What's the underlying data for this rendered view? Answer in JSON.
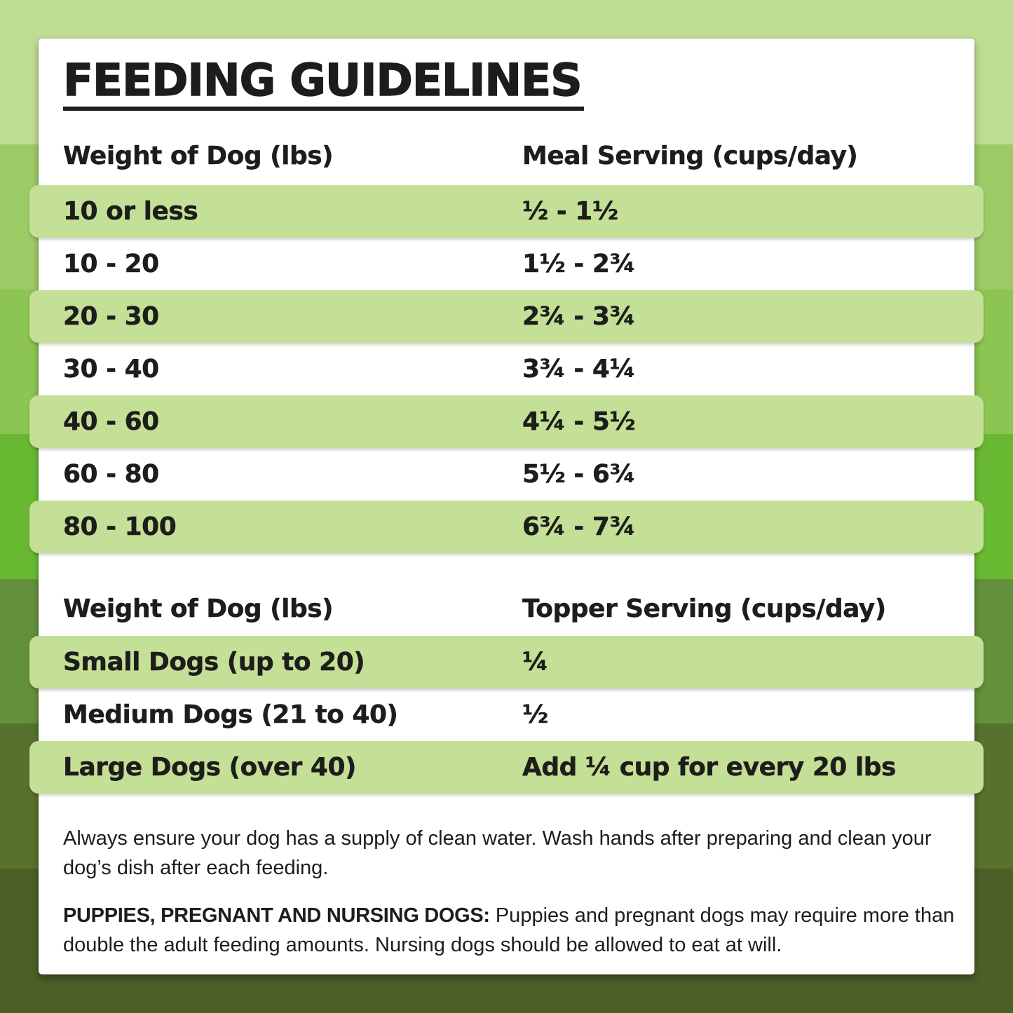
{
  "title": "FEEDING GUIDELINES",
  "meal_table": {
    "col1_header": "Weight of Dog (lbs)",
    "col2_header": "Meal Serving (cups/day)",
    "rows": [
      {
        "weight": "10 or less",
        "serving": "½ - 1½"
      },
      {
        "weight": "10 - 20",
        "serving": "1½ - 2¾"
      },
      {
        "weight": "20 - 30",
        "serving": "2¾ - 3¾"
      },
      {
        "weight": "30 - 40",
        "serving": "3¾ - 4¼"
      },
      {
        "weight": "40 - 60",
        "serving": "4¼ - 5½"
      },
      {
        "weight": "60 - 80",
        "serving": "5½ - 6¾"
      },
      {
        "weight": "80 - 100",
        "serving": "6¾ - 7¾"
      }
    ]
  },
  "topper_table": {
    "col1_header": "Weight of Dog (lbs)",
    "col2_header": "Topper Serving (cups/day)",
    "rows": [
      {
        "weight": "Small Dogs (up to 20)",
        "serving": "¼"
      },
      {
        "weight": "Medium Dogs (21 to 40)",
        "serving": "½"
      },
      {
        "weight": "Large Dogs (over 40)",
        "serving": "Add ¼ cup for every 20 lbs"
      }
    ]
  },
  "notes": {
    "water_note": "Always ensure your dog has a supply of clean water. Wash hands after preparing and clean your dog’s dish after each feeding.",
    "puppies_label": "PUPPIES, PREGNANT AND NURSING DOGS:",
    "puppies_text": "Puppies and pregnant dogs may require more than double the adult feeding amounts. Nursing dogs should be allowed to eat at will."
  },
  "theme": {
    "text_color": "#1d1d1b",
    "panel_color": "#ffffff",
    "row_highlight_color": "#c4df96",
    "background_band_colors": [
      "#bedc92",
      "#9ccb66",
      "#8cc551",
      "#68b931",
      "#63903a",
      "#56722c",
      "#4b5f27"
    ]
  }
}
